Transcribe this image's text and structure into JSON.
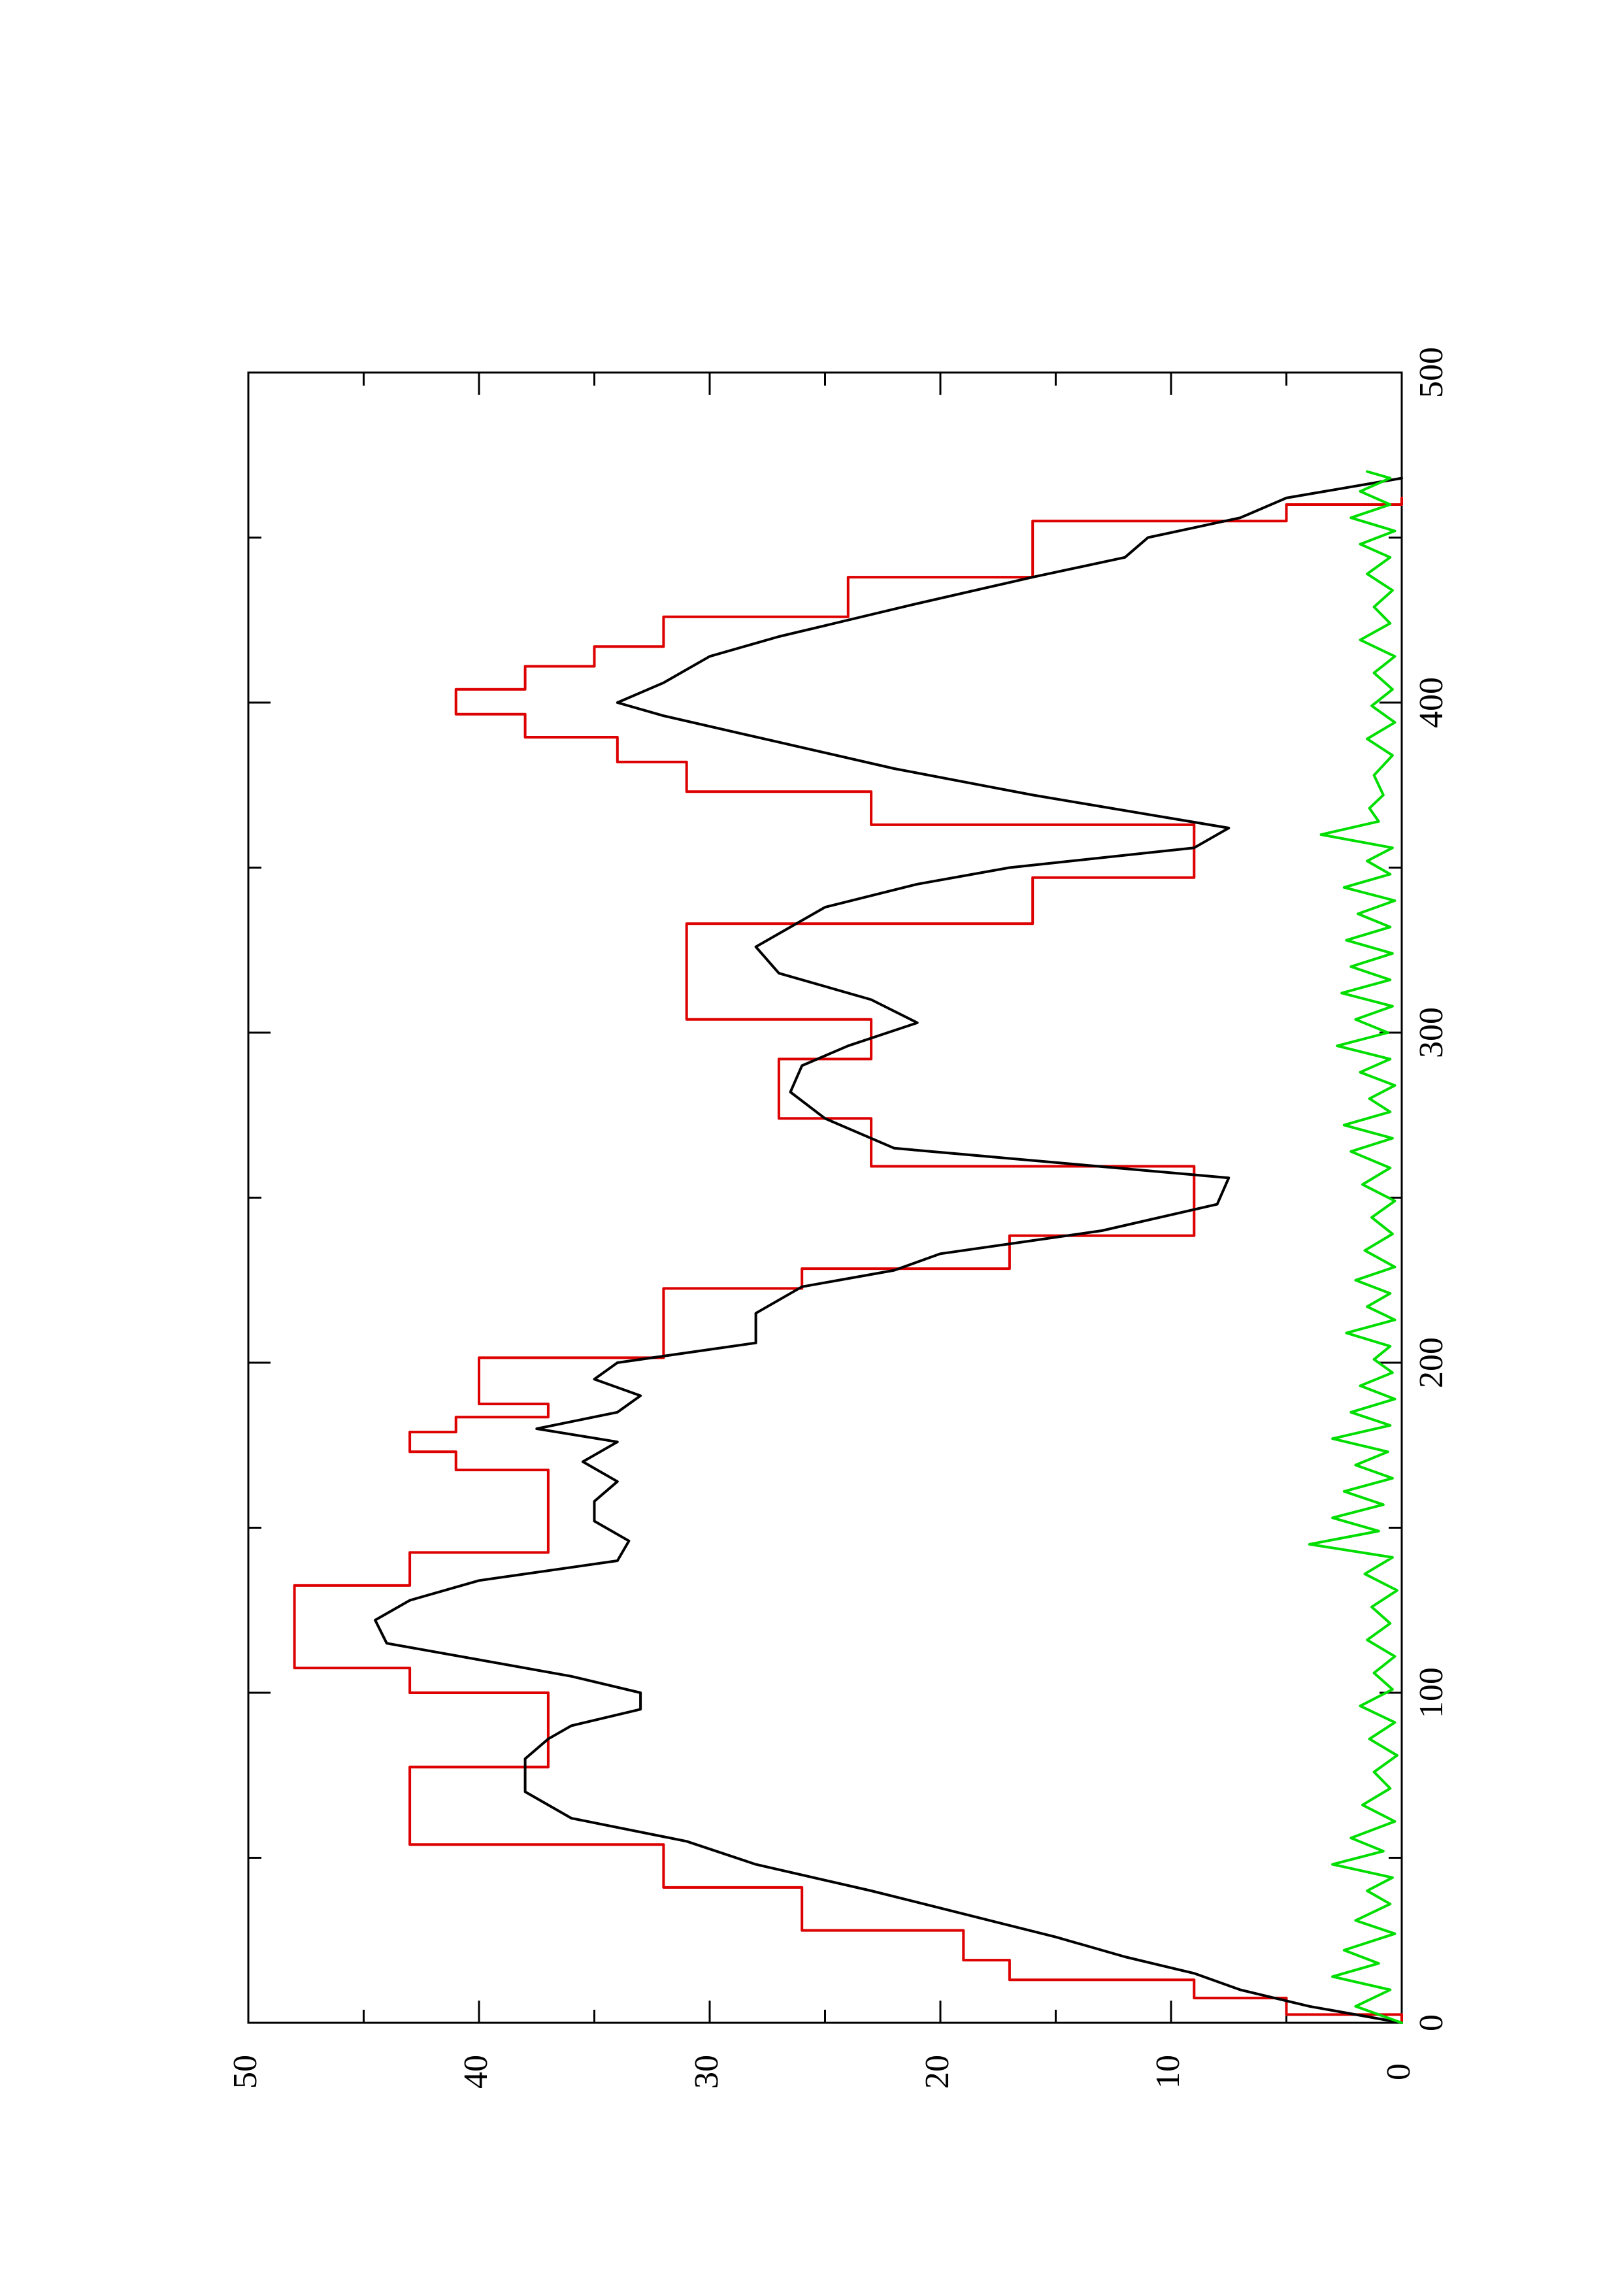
{
  "chart_data": {
    "type": "line",
    "orientation": "rotated-90-ccw",
    "xlim": [
      0,
      500
    ],
    "ylim": [
      0,
      50
    ],
    "x_ticks": [
      0,
      100,
      200,
      300,
      400,
      500
    ],
    "y_ticks": [
      0,
      10,
      20,
      30,
      40,
      50
    ],
    "x_tick_labels": [
      "0",
      "100",
      "200",
      "300",
      "400",
      "500"
    ],
    "y_tick_labels": [
      "0",
      "10",
      "20",
      "30",
      "40",
      "50"
    ],
    "grid": false,
    "series": [
      {
        "color": "#dd0000",
        "style": "step",
        "points": [
          [
            0,
            0
          ],
          [
            5,
            5
          ],
          [
            10,
            9
          ],
          [
            16,
            17
          ],
          [
            22,
            19
          ],
          [
            34,
            26
          ],
          [
            48,
            32
          ],
          [
            60,
            43
          ],
          [
            75,
            43
          ],
          [
            80,
            37
          ],
          [
            95,
            37
          ],
          [
            105,
            43
          ],
          [
            110,
            48
          ],
          [
            125,
            48
          ],
          [
            140,
            43
          ],
          [
            145,
            37
          ],
          [
            165,
            37
          ],
          [
            170,
            41
          ],
          [
            176,
            43
          ],
          [
            182,
            41
          ],
          [
            185,
            37
          ],
          [
            190,
            40
          ],
          [
            198,
            40
          ],
          [
            205,
            32
          ],
          [
            220,
            32
          ],
          [
            225,
            26
          ],
          [
            232,
            17
          ],
          [
            245,
            9
          ],
          [
            257,
            9
          ],
          [
            262,
            23
          ],
          [
            270,
            23
          ],
          [
            278,
            27
          ],
          [
            288,
            27
          ],
          [
            296,
            23
          ],
          [
            300,
            23
          ],
          [
            308,
            31
          ],
          [
            324,
            31
          ],
          [
            330,
            31
          ],
          [
            336,
            16
          ],
          [
            344,
            16
          ],
          [
            350,
            9
          ],
          [
            358,
            9
          ],
          [
            368,
            23
          ],
          [
            378,
            31
          ],
          [
            386,
            34
          ],
          [
            393,
            38
          ],
          [
            400,
            41
          ],
          [
            408,
            38
          ],
          [
            414,
            35
          ],
          [
            420,
            32
          ],
          [
            432,
            24
          ],
          [
            444,
            16
          ],
          [
            452,
            16
          ],
          [
            458,
            5
          ],
          [
            462,
            0
          ]
        ]
      },
      {
        "color": "#000000",
        "style": "line",
        "points": [
          [
            0,
            0
          ],
          [
            5,
            4
          ],
          [
            10,
            7
          ],
          [
            15,
            9
          ],
          [
            20,
            12
          ],
          [
            26,
            15
          ],
          [
            33,
            19
          ],
          [
            40,
            23
          ],
          [
            48,
            28
          ],
          [
            55,
            31
          ],
          [
            62,
            36
          ],
          [
            70,
            38
          ],
          [
            80,
            38
          ],
          [
            86,
            37
          ],
          [
            90,
            36
          ],
          [
            95,
            33
          ],
          [
            100,
            33
          ],
          [
            105,
            36
          ],
          [
            110,
            40
          ],
          [
            115,
            44
          ],
          [
            122,
            44.5
          ],
          [
            128,
            43
          ],
          [
            134,
            40
          ],
          [
            140,
            34
          ],
          [
            146,
            33.5
          ],
          [
            152,
            35
          ],
          [
            158,
            35
          ],
          [
            164,
            34
          ],
          [
            170,
            35.5
          ],
          [
            176,
            34
          ],
          [
            180,
            37.5
          ],
          [
            185,
            34
          ],
          [
            190,
            33
          ],
          [
            195,
            35
          ],
          [
            200,
            34
          ],
          [
            206,
            28
          ],
          [
            215,
            28
          ],
          [
            223,
            26
          ],
          [
            228,
            22
          ],
          [
            233,
            20
          ],
          [
            240,
            13
          ],
          [
            248,
            8
          ],
          [
            256,
            7.5
          ],
          [
            265,
            22
          ],
          [
            274,
            25
          ],
          [
            282,
            26.5
          ],
          [
            290,
            26
          ],
          [
            296,
            24
          ],
          [
            303,
            21
          ],
          [
            310,
            23
          ],
          [
            318,
            27
          ],
          [
            326,
            28
          ],
          [
            330,
            27
          ],
          [
            338,
            25
          ],
          [
            345,
            21
          ],
          [
            350,
            17
          ],
          [
            356,
            9
          ],
          [
            362,
            7.5
          ],
          [
            372,
            16
          ],
          [
            380,
            22
          ],
          [
            388,
            27
          ],
          [
            396,
            32
          ],
          [
            400,
            34
          ],
          [
            406,
            32
          ],
          [
            414,
            30
          ],
          [
            420,
            27
          ],
          [
            430,
            21
          ],
          [
            438,
            16
          ],
          [
            444,
            12
          ],
          [
            450,
            11
          ],
          [
            456,
            7
          ],
          [
            462,
            5
          ],
          [
            468,
            0
          ]
        ]
      },
      {
        "color": "#00dd00",
        "style": "noise",
        "points": [
          [
            0,
            0
          ],
          [
            5,
            2
          ],
          [
            10,
            0.5
          ],
          [
            14,
            3
          ],
          [
            18,
            1
          ],
          [
            22,
            2.5
          ],
          [
            27,
            0.3
          ],
          [
            31,
            2
          ],
          [
            36,
            0.5
          ],
          [
            40,
            1.5
          ],
          [
            44,
            0.4
          ],
          [
            48,
            3
          ],
          [
            52,
            0.8
          ],
          [
            56,
            2.2
          ],
          [
            61,
            0.3
          ],
          [
            66,
            1.7
          ],
          [
            71,
            0.5
          ],
          [
            76,
            1.2
          ],
          [
            81,
            0.2
          ],
          [
            86,
            1.4
          ],
          [
            91,
            0.3
          ],
          [
            96,
            1.8
          ],
          [
            101,
            0.4
          ],
          [
            106,
            1.2
          ],
          [
            111,
            0.3
          ],
          [
            116,
            1.5
          ],
          [
            121,
            0.5
          ],
          [
            126,
            1.3
          ],
          [
            131,
            0.2
          ],
          [
            136,
            1.6
          ],
          [
            141,
            0.4
          ],
          [
            145,
            4
          ],
          [
            149,
            1
          ],
          [
            153,
            3
          ],
          [
            157,
            0.8
          ],
          [
            161,
            2.5
          ],
          [
            165,
            0.4
          ],
          [
            169,
            2
          ],
          [
            173,
            0.6
          ],
          [
            177,
            3
          ],
          [
            181,
            0.5
          ],
          [
            185,
            2.2
          ],
          [
            189,
            0.3
          ],
          [
            193,
            1.8
          ],
          [
            197,
            0.4
          ],
          [
            201,
            1.2
          ],
          [
            205,
            0.5
          ],
          [
            209,
            2.4
          ],
          [
            213,
            0.3
          ],
          [
            217,
            1.5
          ],
          [
            221,
            0.5
          ],
          [
            225,
            2
          ],
          [
            229,
            0.3
          ],
          [
            234,
            1.6
          ],
          [
            239,
            0.4
          ],
          [
            244,
            1.3
          ],
          [
            249,
            0.3
          ],
          [
            254,
            1.7
          ],
          [
            259,
            0.5
          ],
          [
            264,
            2.2
          ],
          [
            268,
            0.4
          ],
          [
            272,
            2.5
          ],
          [
            276,
            0.5
          ],
          [
            280,
            1.4
          ],
          [
            284,
            0.3
          ],
          [
            288,
            1.8
          ],
          [
            292,
            0.5
          ],
          [
            296,
            2.8
          ],
          [
            300,
            0.6
          ],
          [
            304,
            2
          ],
          [
            308,
            0.4
          ],
          [
            312,
            2.6
          ],
          [
            316,
            0.5
          ],
          [
            320,
            2.2
          ],
          [
            324,
            0.4
          ],
          [
            328,
            2.4
          ],
          [
            332,
            0.5
          ],
          [
            336,
            1.9
          ],
          [
            340,
            0.3
          ],
          [
            344,
            2.5
          ],
          [
            348,
            0.5
          ],
          [
            352,
            1.5
          ],
          [
            356,
            0.4
          ],
          [
            360,
            3.5
          ],
          [
            364,
            1
          ],
          [
            368,
            1.4
          ],
          [
            372,
            0.8
          ],
          [
            378,
            1.2
          ],
          [
            384,
            0.4
          ],
          [
            389,
            1.5
          ],
          [
            394,
            0.3
          ],
          [
            399,
            1.3
          ],
          [
            404,
            0.4
          ],
          [
            409,
            1.2
          ],
          [
            414,
            0.3
          ],
          [
            419,
            1.8
          ],
          [
            424,
            0.5
          ],
          [
            429,
            1.2
          ],
          [
            434,
            0.4
          ],
          [
            439,
            1.5
          ],
          [
            444,
            0.5
          ],
          [
            448,
            1.8
          ],
          [
            452,
            0.3
          ],
          [
            456,
            2.2
          ],
          [
            460,
            0.5
          ],
          [
            464,
            1.8
          ],
          [
            468,
            0.5
          ],
          [
            470,
            1.5
          ]
        ]
      }
    ]
  }
}
